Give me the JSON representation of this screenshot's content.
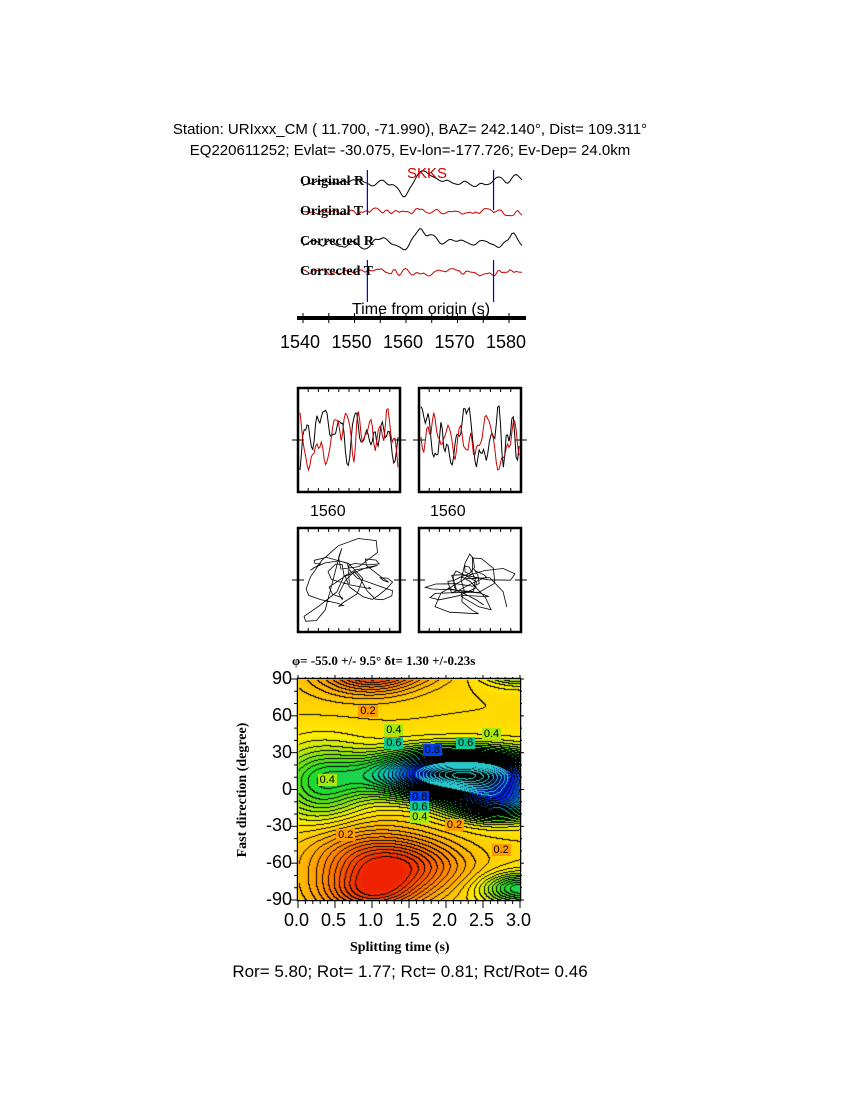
{
  "header": {
    "line1": "Station: URIxxx_CM (  11.700,  -71.990), BAZ=  242.140°, Dist=  109.311°",
    "line2": "EQ220611252; Evlat= -30.075, Ev-lon=-177.726; Ev-Dep= 24.0km"
  },
  "traces": {
    "phase_label": "SKKS",
    "labels": [
      "Original R",
      "Original T",
      "Corrected R",
      "Corrected T"
    ],
    "colors": [
      "#000000",
      "#cc0000",
      "#000000",
      "#cc0000"
    ],
    "window_color": "#0000cc",
    "window_start": 1552.5,
    "window_end": 1577,
    "xlabel": "Time from origin (s)",
    "xticks": [
      "1540",
      "1550",
      "1560",
      "1570",
      "1580"
    ],
    "xlim": [
      1539.5,
      1583
    ]
  },
  "waveform_panels": {
    "tick_labels": [
      "1560",
      "1560"
    ]
  },
  "chart_data": {
    "type": "heatmap",
    "title": "φ= -55.0 +/- 9.5° δt= 1.30 +/-0.23s",
    "xlabel": "Splitting time (s)",
    "ylabel": "Fast direction (degree)",
    "xlim": [
      0,
      3
    ],
    "ylim": [
      -90,
      90
    ],
    "xticks": [
      "0.0",
      "0.5",
      "1.0",
      "1.5",
      "2.0",
      "2.5",
      "3.0"
    ],
    "yticks": [
      "90",
      "60",
      "30",
      "0",
      "-30",
      "-60",
      "-90"
    ],
    "contour_labels": [
      {
        "text": "0.2",
        "dt": 0.65,
        "phi": -38
      },
      {
        "text": "0.2",
        "dt": 0.95,
        "phi": 63
      },
      {
        "text": "0.4",
        "dt": 1.3,
        "phi": 48
      },
      {
        "text": "0.6",
        "dt": 1.3,
        "phi": 37
      },
      {
        "text": "0.4",
        "dt": 2.62,
        "phi": 44
      },
      {
        "text": "0.6",
        "dt": 2.27,
        "phi": 37
      },
      {
        "text": "0.8",
        "dt": 1.82,
        "phi": 31
      },
      {
        "text": "0.4",
        "dt": 0.4,
        "phi": 7
      },
      {
        "text": "0.8",
        "dt": 1.65,
        "phi": -7
      },
      {
        "text": "0.6",
        "dt": 1.65,
        "phi": -15
      },
      {
        "text": "0.4",
        "dt": 1.65,
        "phi": -23
      },
      {
        "text": "0.2",
        "dt": 2.12,
        "phi": -30
      },
      {
        "text": "0.2",
        "dt": 2.75,
        "phi": -50
      }
    ],
    "best_fit": {
      "dt": 1.3,
      "phi": -55.0,
      "dt_error": 0.23,
      "phi_error": 9.5,
      "marker": "star"
    },
    "colormap": [
      "#ee2200",
      "#ff8800",
      "#ffee00",
      "#22dd22",
      "#00bbdd",
      "#0022ee",
      "#000000"
    ]
  },
  "footer": {
    "stats": "Ror= 5.80; Rot= 1.77; Rct= 0.81; Rct/Rot= 0.46"
  }
}
